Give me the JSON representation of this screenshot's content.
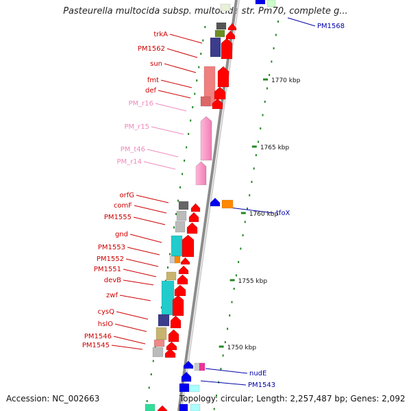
{
  "title": "Pasteurella multocida subsp. multocida str. Pm70, complete g...",
  "footer": {
    "accession": "Accession: NC_002663",
    "topology": "Topology: circular; Length: 2,257,487 bp; Genes: 2,092"
  },
  "colors": {
    "gene_red": "#ff0000",
    "label_red": "#cc0000",
    "rna_pink": "#ff99cc",
    "label_pink": "#ee88bb",
    "blue": "#0000ee",
    "label_blue": "#0000aa",
    "tick_green": "#228822",
    "backbone": "#aaaaaa"
  },
  "ticks": [
    {
      "label": "1770 kbp"
    },
    {
      "label": "1765 kbp"
    },
    {
      "label": "1760 kbp"
    },
    {
      "label": "1755 kbp"
    },
    {
      "label": "1750 kbp"
    }
  ],
  "left_labels": [
    {
      "text": "trkA",
      "kind": "cds"
    },
    {
      "text": "PM1562",
      "kind": "cds"
    },
    {
      "text": "sun",
      "kind": "cds"
    },
    {
      "text": "fmt",
      "kind": "cds"
    },
    {
      "text": "def",
      "kind": "cds"
    },
    {
      "text": "PM_r16",
      "kind": "rna"
    },
    {
      "text": "PM_r15",
      "kind": "rna"
    },
    {
      "text": "PM_t46",
      "kind": "rna"
    },
    {
      "text": "PM_r14",
      "kind": "rna"
    },
    {
      "text": "orfG",
      "kind": "cds"
    },
    {
      "text": "comF",
      "kind": "cds"
    },
    {
      "text": "PM1555",
      "kind": "cds"
    },
    {
      "text": "gnd",
      "kind": "cds"
    },
    {
      "text": "PM1553",
      "kind": "cds"
    },
    {
      "text": "PM1552",
      "kind": "cds"
    },
    {
      "text": "PM1551",
      "kind": "cds"
    },
    {
      "text": "devB",
      "kind": "cds"
    },
    {
      "text": "zwf",
      "kind": "cds"
    },
    {
      "text": "cysQ",
      "kind": "cds"
    },
    {
      "text": "hslO",
      "kind": "cds"
    },
    {
      "text": "PM1546",
      "kind": "cds"
    },
    {
      "text": "PM1545",
      "kind": "cds"
    }
  ],
  "right_labels": [
    {
      "text": "PM1568"
    },
    {
      "text": "tfoX"
    },
    {
      "text": "nudE"
    },
    {
      "text": "PM1543"
    }
  ]
}
